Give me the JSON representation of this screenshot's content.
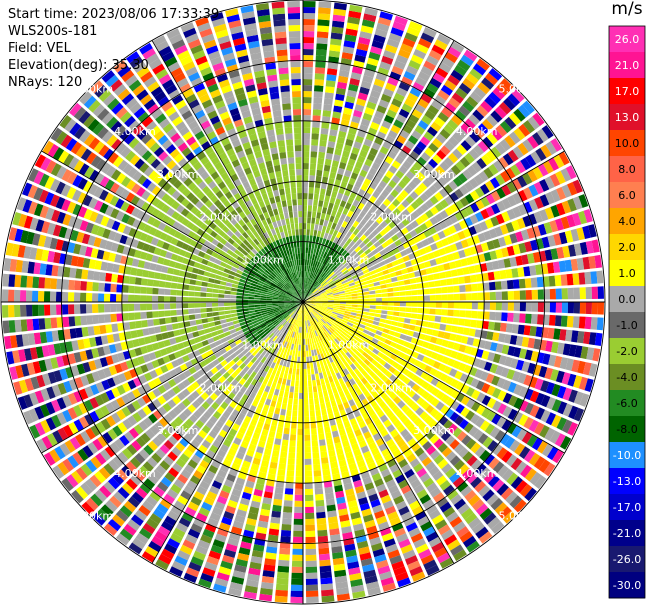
{
  "header": {
    "start_time": "Start time: 2023/08/06 17:33:39",
    "instrument": "WLS200s-181",
    "field": "Field: VEL",
    "elevation": "Elevation(deg): 35.30",
    "nrays": "NRays: 120"
  },
  "colorbar": {
    "unit": "m/s",
    "ticks": [
      "26.0",
      "21.0",
      "17.0",
      "13.0",
      "10.0",
      "8.0",
      "6.0",
      "4.0",
      "2.0",
      "1.0",
      "0.0",
      "-1.0",
      "-2.0",
      "-4.0",
      "-6.0",
      "-8.0",
      "-10.0",
      "-13.0",
      "-17.0",
      "-21.0",
      "-26.0",
      "-30.0"
    ],
    "colors": [
      "#ff2fb4",
      "#ff1493",
      "#ff0000",
      "#e0102a",
      "#ff4500",
      "#ff6347",
      "#ff7f50",
      "#ffa500",
      "#ffd700",
      "#ffff00",
      "#a9a9a9",
      "#696969",
      "#9acd32",
      "#6b8e23",
      "#228b22",
      "#006400",
      "#1e90ff",
      "#0000ff",
      "#0000cd",
      "#00008b",
      "#191970",
      "#000080"
    ]
  },
  "chart_data": {
    "type": "heatmap",
    "subtype": "ppi-polar",
    "field": "VEL",
    "unit": "m/s",
    "nrays": 120,
    "range_rings_km": [
      1.0,
      2.0,
      3.0,
      4.0,
      5.0
    ],
    "range_ring_labels": [
      "1.00km",
      "2.00km",
      "3.00km",
      "4.00km",
      "5.00km"
    ],
    "max_range_km": 5.0,
    "color_range": [
      -30.0,
      26.0
    ],
    "spokes_deg": [
      0,
      30,
      60,
      90,
      120,
      150,
      180,
      210,
      240,
      270,
      300,
      330
    ]
  }
}
